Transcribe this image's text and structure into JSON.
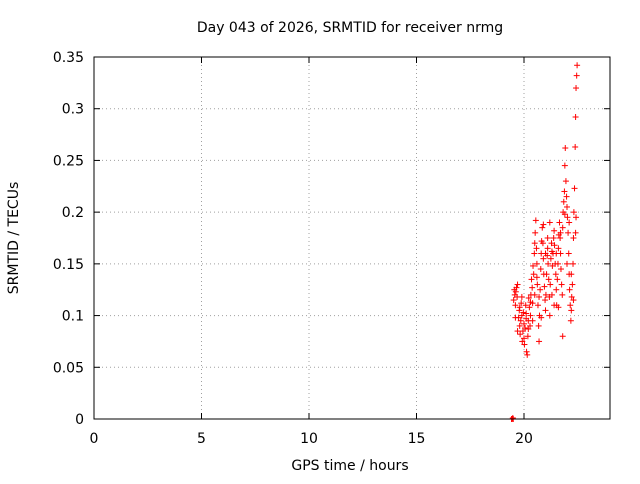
{
  "chart_data": {
    "type": "scatter",
    "title": "Day 043 of 2026, SRMTID for receiver nrmg",
    "xlabel": "GPS time / hours",
    "ylabel": "SRMTID / TECUs",
    "xlim": [
      0,
      24
    ],
    "ylim": [
      0,
      0.35
    ],
    "xticks": [
      0,
      5,
      10,
      15,
      20
    ],
    "xtick_labels": [
      "0",
      "5",
      "10",
      "15",
      "20"
    ],
    "yticks": [
      0,
      0.05,
      0.1,
      0.15,
      0.2,
      0.25,
      0.3,
      0.35
    ],
    "ytick_labels": [
      "0",
      "0.05",
      "0.1",
      "0.15",
      "0.2",
      "0.25",
      "0.3",
      "0.35"
    ],
    "grid": true,
    "marker": "+",
    "color": "#ff0000",
    "series": [
      {
        "name": "SRMTID",
        "points": [
          [
            19.42,
            0.0
          ],
          [
            19.45,
            0.0
          ],
          [
            19.48,
            0.001
          ],
          [
            19.5,
            0.0
          ],
          [
            19.52,
            0.115
          ],
          [
            19.55,
            0.125
          ],
          [
            19.57,
            0.12
          ],
          [
            19.6,
            0.11
          ],
          [
            19.62,
            0.123
          ],
          [
            19.65,
            0.127
          ],
          [
            19.68,
            0.118
          ],
          [
            19.7,
            0.13
          ],
          [
            19.75,
            0.098
          ],
          [
            19.78,
            0.105
          ],
          [
            19.8,
            0.09
          ],
          [
            19.82,
            0.082
          ],
          [
            19.85,
            0.095
          ],
          [
            19.87,
            0.112
          ],
          [
            19.9,
            0.1
          ],
          [
            19.92,
            0.075
          ],
          [
            19.95,
            0.085
          ],
          [
            19.97,
            0.103
          ],
          [
            20.0,
            0.092
          ],
          [
            20.02,
            0.072
          ],
          [
            20.05,
            0.088
          ],
          [
            20.08,
            0.11
          ],
          [
            20.1,
            0.097
          ],
          [
            20.12,
            0.065
          ],
          [
            20.15,
            0.062
          ],
          [
            20.18,
            0.08
          ],
          [
            20.2,
            0.095
          ],
          [
            20.22,
            0.117
          ],
          [
            20.25,
            0.108
          ],
          [
            20.28,
            0.09
          ],
          [
            20.3,
            0.1
          ],
          [
            20.32,
            0.12
          ],
          [
            20.35,
            0.135
          ],
          [
            20.38,
            0.127
          ],
          [
            20.4,
            0.112
          ],
          [
            20.42,
            0.148
          ],
          [
            20.45,
            0.14
          ],
          [
            20.48,
            0.16
          ],
          [
            20.5,
            0.17
          ],
          [
            20.52,
            0.18
          ],
          [
            20.55,
            0.192
          ],
          [
            20.58,
            0.165
          ],
          [
            20.6,
            0.15
          ],
          [
            20.62,
            0.13
          ],
          [
            20.65,
            0.11
          ],
          [
            20.68,
            0.09
          ],
          [
            20.7,
            0.075
          ],
          [
            20.72,
            0.1
          ],
          [
            20.75,
            0.125
          ],
          [
            20.78,
            0.145
          ],
          [
            20.8,
            0.16
          ],
          [
            20.82,
            0.172
          ],
          [
            20.85,
            0.185
          ],
          [
            20.88,
            0.17
          ],
          [
            20.9,
            0.155
          ],
          [
            20.92,
            0.14
          ],
          [
            20.95,
            0.128
          ],
          [
            20.98,
            0.115
          ],
          [
            21.0,
            0.105
          ],
          [
            21.02,
            0.12
          ],
          [
            21.05,
            0.14
          ],
          [
            21.08,
            0.158
          ],
          [
            21.1,
            0.165
          ],
          [
            21.12,
            0.15
          ],
          [
            21.15,
            0.135
          ],
          [
            21.18,
            0.118
          ],
          [
            21.2,
            0.1
          ],
          [
            21.22,
            0.13
          ],
          [
            21.25,
            0.155
          ],
          [
            21.28,
            0.17
          ],
          [
            21.3,
            0.162
          ],
          [
            21.32,
            0.148
          ],
          [
            21.35,
            0.16
          ],
          [
            21.38,
            0.175
          ],
          [
            21.4,
            0.182
          ],
          [
            21.42,
            0.168
          ],
          [
            21.45,
            0.15
          ],
          [
            21.48,
            0.14
          ],
          [
            21.5,
            0.125
          ],
          [
            21.52,
            0.11
          ],
          [
            21.55,
            0.135
          ],
          [
            21.58,
            0.15
          ],
          [
            21.6,
            0.165
          ],
          [
            21.62,
            0.178
          ],
          [
            21.65,
            0.19
          ],
          [
            21.68,
            0.175
          ],
          [
            21.7,
            0.16
          ],
          [
            21.72,
            0.145
          ],
          [
            21.75,
            0.13
          ],
          [
            21.78,
            0.12
          ],
          [
            21.8,
            0.185
          ],
          [
            21.82,
            0.2
          ],
          [
            21.85,
            0.21
          ],
          [
            21.88,
            0.22
          ],
          [
            21.9,
            0.245
          ],
          [
            21.92,
            0.262
          ],
          [
            21.95,
            0.23
          ],
          [
            21.98,
            0.215
          ],
          [
            22.0,
            0.205
          ],
          [
            22.02,
            0.195
          ],
          [
            22.05,
            0.18
          ],
          [
            22.08,
            0.16
          ],
          [
            22.1,
            0.14
          ],
          [
            22.12,
            0.125
          ],
          [
            22.15,
            0.11
          ],
          [
            22.18,
            0.095
          ],
          [
            22.2,
            0.105
          ],
          [
            22.22,
            0.118
          ],
          [
            22.25,
            0.13
          ],
          [
            22.28,
            0.15
          ],
          [
            22.3,
            0.175
          ],
          [
            22.32,
            0.2
          ],
          [
            22.35,
            0.223
          ],
          [
            22.38,
            0.263
          ],
          [
            22.4,
            0.292
          ],
          [
            22.42,
            0.32
          ],
          [
            22.45,
            0.332
          ],
          [
            22.47,
            0.342
          ],
          [
            19.6,
            0.098
          ],
          [
            19.7,
            0.085
          ],
          [
            19.8,
            0.108
          ],
          [
            19.9,
            0.118
          ],
          [
            20.0,
            0.078
          ],
          [
            20.1,
            0.102
          ],
          [
            20.2,
            0.087
          ],
          [
            20.3,
            0.113
          ],
          [
            20.4,
            0.095
          ],
          [
            20.5,
            0.12
          ],
          [
            20.6,
            0.137
          ],
          [
            20.7,
            0.118
          ],
          [
            20.8,
            0.098
          ],
          [
            20.9,
            0.188
          ],
          [
            21.0,
            0.16
          ],
          [
            21.1,
            0.175
          ],
          [
            21.2,
            0.19
          ],
          [
            21.3,
            0.12
          ],
          [
            21.4,
            0.11
          ],
          [
            21.5,
            0.16
          ],
          [
            21.6,
            0.108
          ],
          [
            21.7,
            0.18
          ],
          [
            21.8,
            0.08
          ],
          [
            21.9,
            0.198
          ],
          [
            22.0,
            0.15
          ],
          [
            22.1,
            0.19
          ],
          [
            22.2,
            0.14
          ],
          [
            22.3,
            0.115
          ],
          [
            22.4,
            0.18
          ],
          [
            22.42,
            0.195
          ]
        ]
      }
    ]
  }
}
